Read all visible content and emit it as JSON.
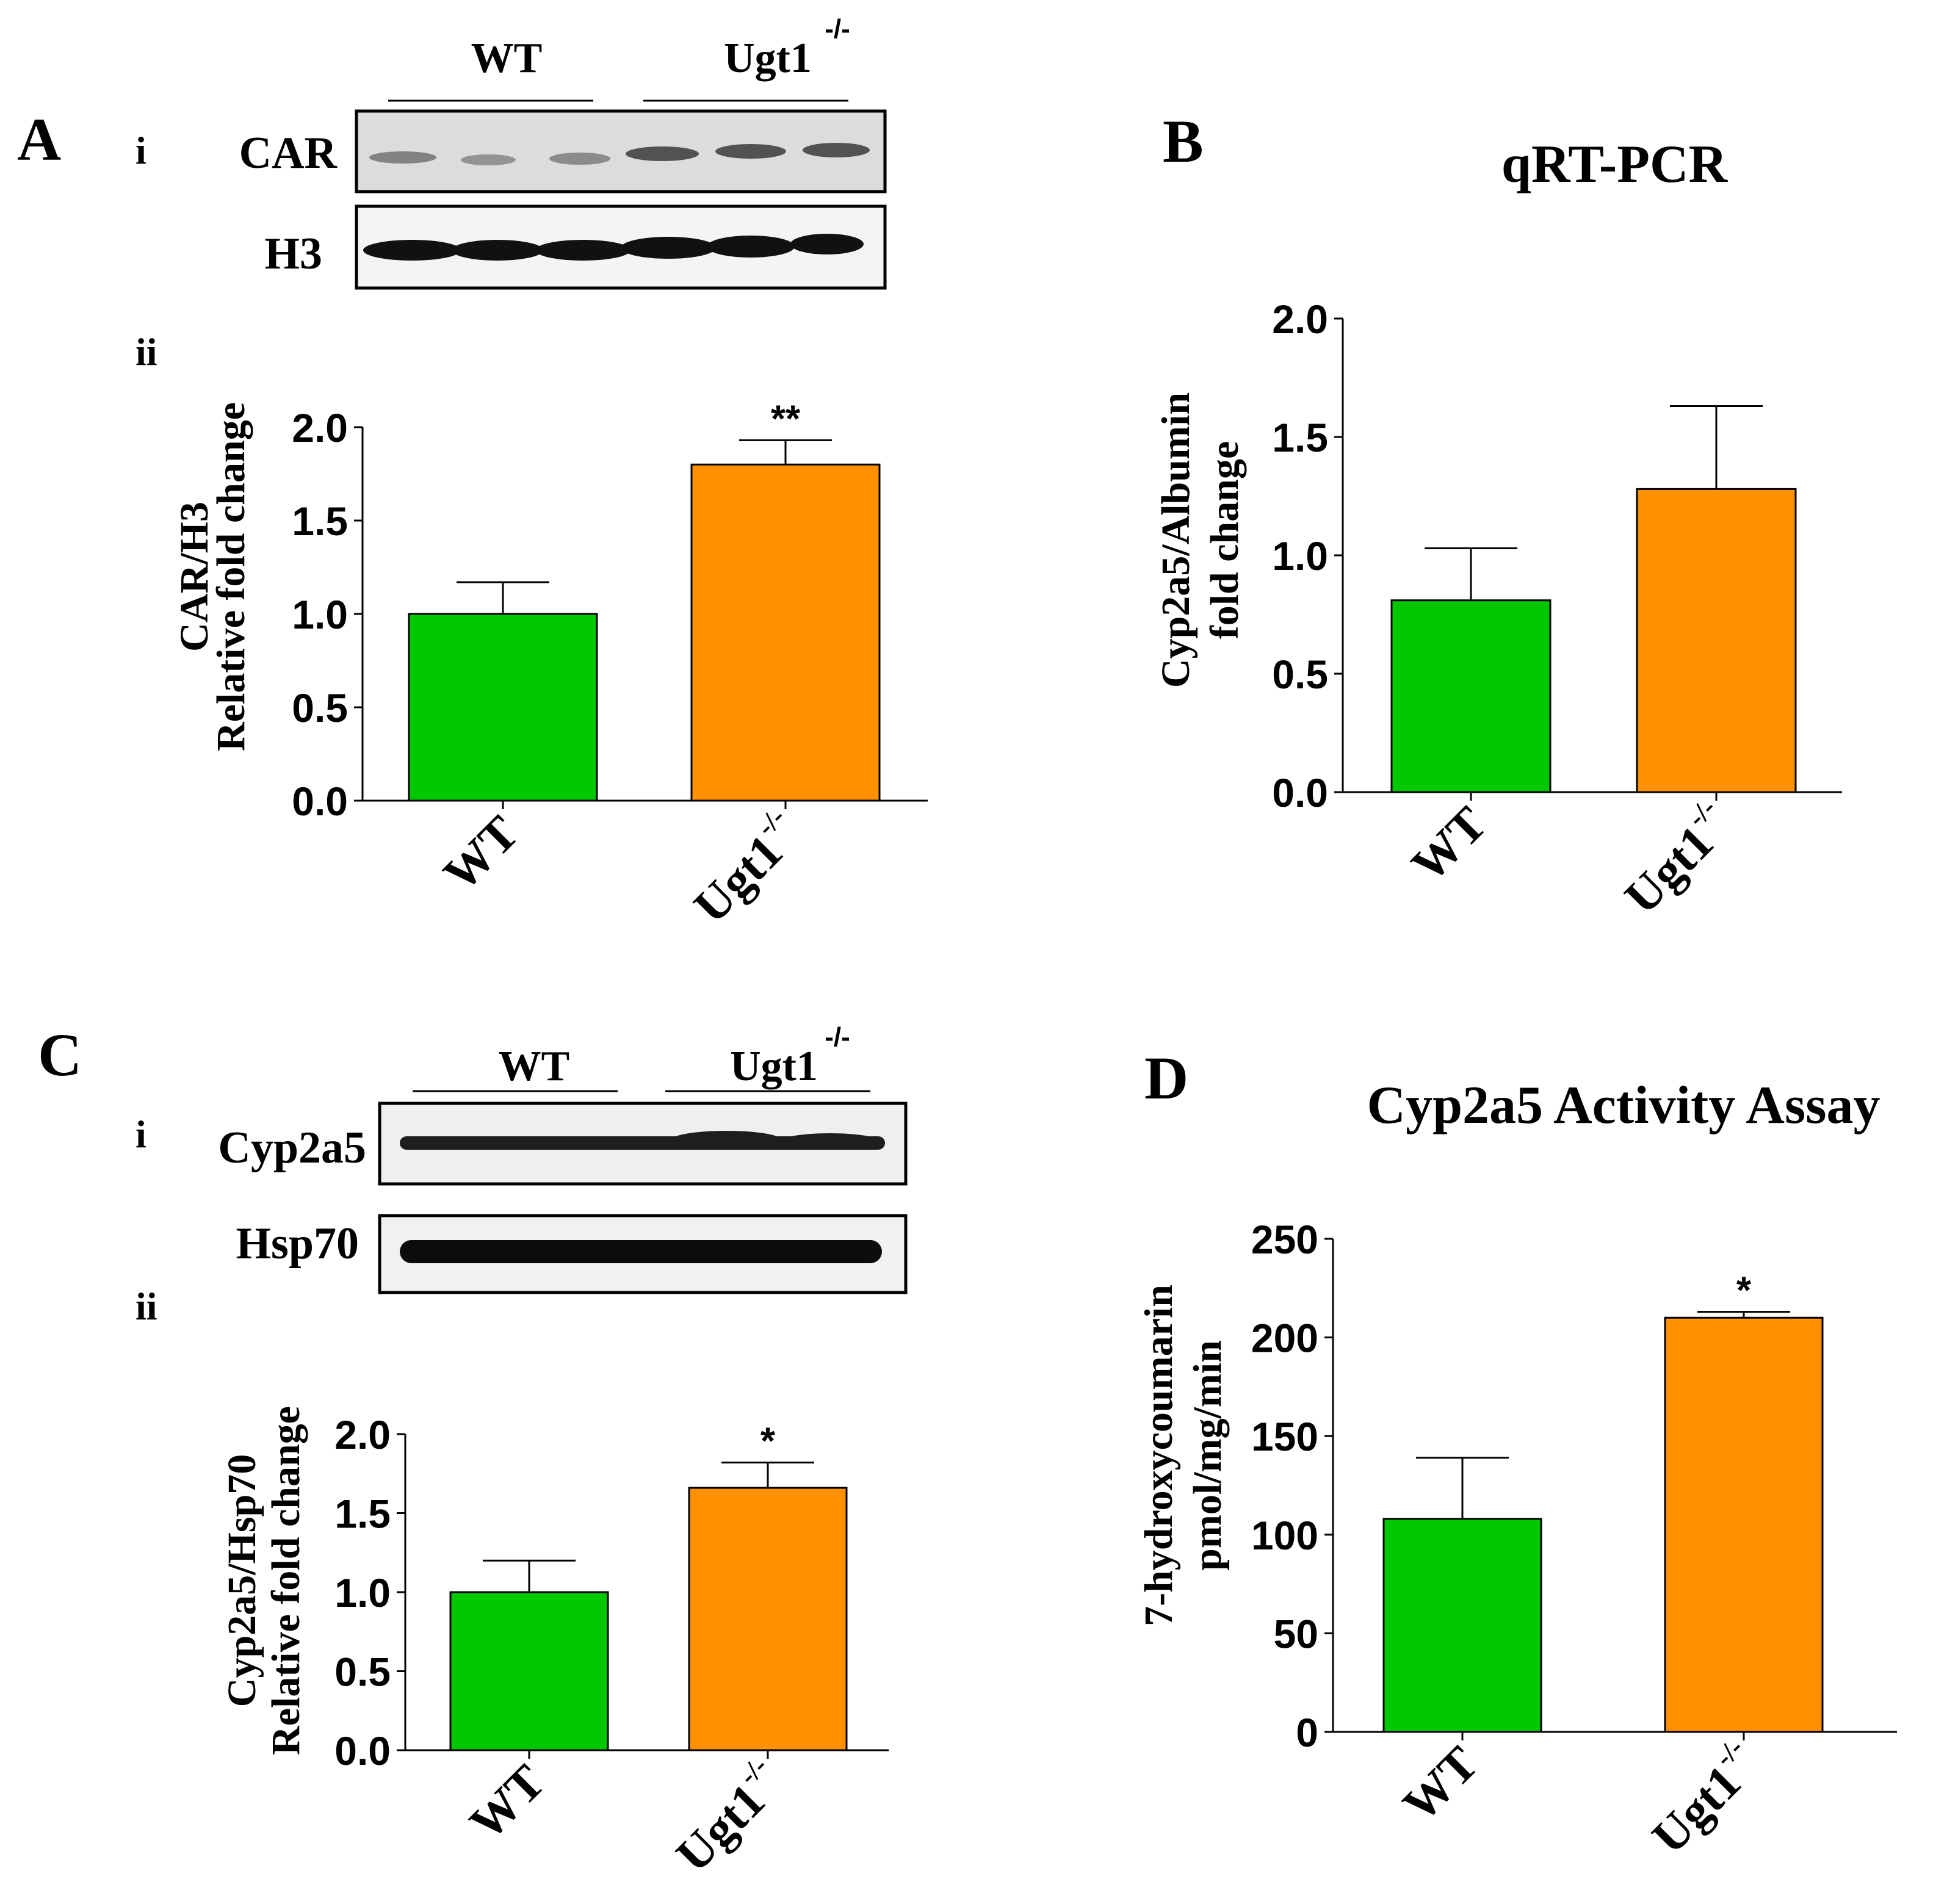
{
  "panels": {
    "A": {
      "letter": "A",
      "sub_i": "i",
      "sub_ii": "ii"
    },
    "B": {
      "letter": "B"
    },
    "C": {
      "letter": "C",
      "sub_i": "i",
      "sub_ii": "ii"
    },
    "D": {
      "letter": "D"
    }
  },
  "blot_a": {
    "group_wt": "WT",
    "group_ko": "Ugt1",
    "group_ko_sup": "-/-",
    "row1_label": "CAR",
    "row2_label": "H3"
  },
  "blot_c": {
    "group_wt": "WT",
    "group_ko": "Ugt1",
    "group_ko_sup": "-/-",
    "row1_label": "Cyp2a5",
    "row2_label": "Hsp70"
  },
  "colors": {
    "wt": "#00c800",
    "ko": "#ff9000"
  },
  "chart_data": [
    {
      "id": "A",
      "type": "bar",
      "title": "",
      "categories": [
        "WT",
        "Ugt1"
      ],
      "category_sup": [
        "",
        "-/-"
      ],
      "values": [
        1.0,
        1.8
      ],
      "errors": [
        0.17,
        0.13
      ],
      "significance": [
        "",
        "**"
      ],
      "ylabel_lines": [
        "CAR/H3",
        "Relative fold change"
      ],
      "ylim": [
        0,
        2.0
      ],
      "ticks": [
        0.0,
        0.5,
        1.0,
        1.5,
        2.0
      ],
      "tick_labels": [
        "0.0",
        "0.5",
        "1.0",
        "1.5",
        "2.0"
      ]
    },
    {
      "id": "B",
      "type": "bar",
      "title": "qRT-PCR",
      "categories": [
        "WT",
        "Ugt1"
      ],
      "category_sup": [
        "",
        "-/-"
      ],
      "values": [
        0.81,
        1.28
      ],
      "errors": [
        0.22,
        0.35
      ],
      "significance": [
        "",
        ""
      ],
      "ylabel_lines": [
        "Cyp2a5/Albumin",
        "fold change"
      ],
      "ylim": [
        0,
        2.0
      ],
      "ticks": [
        0.0,
        0.5,
        1.0,
        1.5,
        2.0
      ],
      "tick_labels": [
        "0.0",
        "0.5",
        "1.0",
        "1.5",
        "2.0"
      ]
    },
    {
      "id": "C",
      "type": "bar",
      "title": "",
      "categories": [
        "WT",
        "Ugt1"
      ],
      "category_sup": [
        "",
        "-/-"
      ],
      "values": [
        1.0,
        1.66
      ],
      "errors": [
        0.2,
        0.16
      ],
      "significance": [
        "",
        "*"
      ],
      "ylabel_lines": [
        "Cyp2a5/Hsp70",
        "Relative fold change"
      ],
      "ylim": [
        0,
        2.0
      ],
      "ticks": [
        0.0,
        0.5,
        1.0,
        1.5,
        2.0
      ],
      "tick_labels": [
        "0.0",
        "0.5",
        "1.0",
        "1.5",
        "2.0"
      ]
    },
    {
      "id": "D",
      "type": "bar",
      "title": "Cyp2a5 Activity Assay",
      "categories": [
        "WT",
        "Ugt1"
      ],
      "category_sup": [
        "",
        "-/-"
      ],
      "values": [
        108,
        210
      ],
      "errors": [
        31,
        3
      ],
      "significance": [
        "",
        "*"
      ],
      "ylabel_lines": [
        "7-hydroxycoumarin",
        "pmol/mg/min"
      ],
      "ylim": [
        0,
        250
      ],
      "ticks": [
        0,
        50,
        100,
        150,
        200,
        250
      ],
      "tick_labels": [
        "0",
        "50",
        "100",
        "150",
        "200",
        "250"
      ]
    }
  ]
}
